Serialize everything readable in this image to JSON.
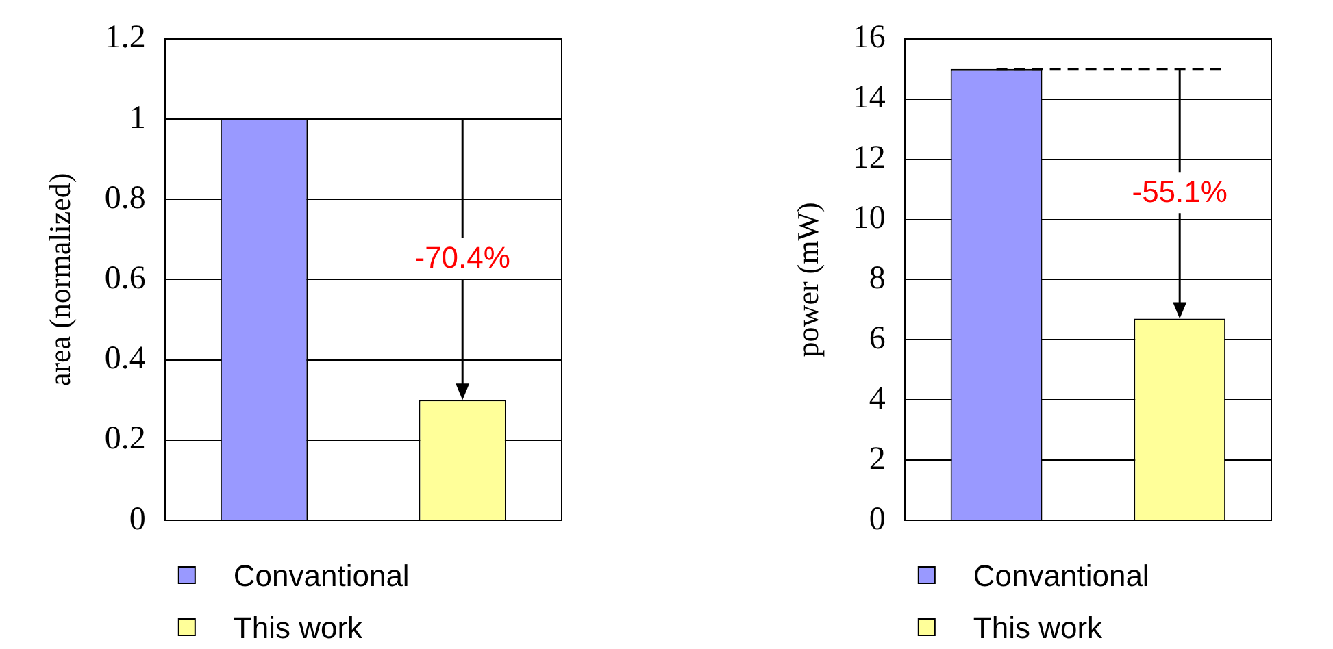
{
  "chart_data": [
    {
      "type": "bar",
      "ylabel": "area (normalized)",
      "categories": [
        null,
        null
      ],
      "series": [
        {
          "name": "Convantional",
          "color": "#9999ff",
          "values": [
            1,
            null
          ]
        },
        {
          "name": "This work",
          "color": "#ffff99",
          "values": [
            null,
            0.3
          ]
        }
      ],
      "ylim": [
        0,
        1.2
      ],
      "yticks": [
        0,
        {
          "value": 0.2,
          "label": "0.2"
        },
        {
          "value": 0.4,
          "label": "0.4"
        },
        {
          "value": 0.6,
          "label": "0.6"
        },
        {
          "value": 0.8,
          "label": "0.8"
        },
        1,
        {
          "value": 1.2,
          "label": "1.2"
        }
      ],
      "grid": "y",
      "legend": "bottom",
      "annotations": [
        "-70.4%"
      ],
      "ref_lines": [
        {
          "axis": "y",
          "value": 1,
          "line_style": "dashed"
        }
      ]
    },
    {
      "type": "bar",
      "ylabel": "power (mW)",
      "categories": [
        null,
        null
      ],
      "series": [
        {
          "name": "Convantional",
          "color": "#9999ff",
          "values": [
            15,
            null
          ]
        },
        {
          "name": "This work",
          "color": "#ffff99",
          "values": [
            null,
            6.7
          ]
        }
      ],
      "ylim": [
        0,
        16
      ],
      "yticks": [
        0,
        2,
        4,
        6,
        8,
        10,
        12,
        14,
        16
      ],
      "grid": "y",
      "legend": "bottom",
      "annotations": [
        "-55.1%"
      ],
      "ref_lines": [
        {
          "axis": "y",
          "value": 15,
          "line_style": "dashed"
        }
      ]
    }
  ]
}
